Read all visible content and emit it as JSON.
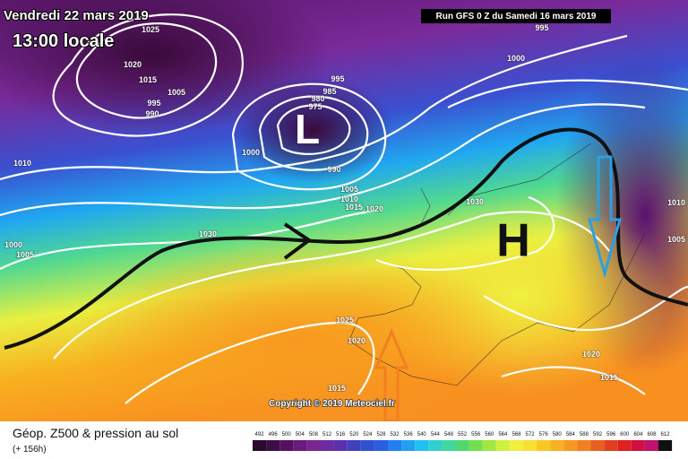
{
  "header": {
    "date": "Vendredi 22 mars 2019",
    "time": "13:00 locale",
    "run": "Run GFS 0 Z du Samedi 16 mars 2019"
  },
  "map": {
    "pressure_labels": [
      "1025",
      "1020",
      "1015",
      "1005",
      "995",
      "990",
      "995",
      "1000",
      "995",
      "985",
      "980",
      "975",
      "1000",
      "990",
      "1005",
      "1010",
      "1015",
      "1020",
      "1010",
      "1000",
      "1005",
      "1030",
      "1030",
      "1010",
      "1005",
      "1025",
      "1020",
      "1015",
      "1020",
      "1015"
    ],
    "high": "H",
    "low": "L",
    "copyright": "Copyright © 2019 Meteociel.fr"
  },
  "footer": {
    "title": "Géop. Z500 & pression au sol",
    "lead": "(+ 156h)",
    "scale": {
      "values": [
        492,
        496,
        500,
        504,
        508,
        512,
        516,
        520,
        524,
        528,
        532,
        536,
        540,
        544,
        548,
        552,
        556,
        560,
        564,
        568,
        572,
        576,
        580,
        584,
        588,
        592,
        596,
        600,
        604,
        608,
        612
      ],
      "colors": [
        "#2b0a2b",
        "#3d0d46",
        "#551060",
        "#6a1a7a",
        "#7a2590",
        "#6e2aa0",
        "#5a30b0",
        "#4040c0",
        "#3050d0",
        "#2a60e0",
        "#2080f0",
        "#20a0f0",
        "#20c0f0",
        "#30d0d0",
        "#40d8a0",
        "#50d870",
        "#70e050",
        "#a0e840",
        "#d0f040",
        "#f0f040",
        "#f8e030",
        "#f8c820",
        "#f8b020",
        "#f89820",
        "#f08020",
        "#e86020",
        "#e04020",
        "#e02020",
        "#d01040",
        "#c01070",
        "#101010"
      ]
    }
  }
}
